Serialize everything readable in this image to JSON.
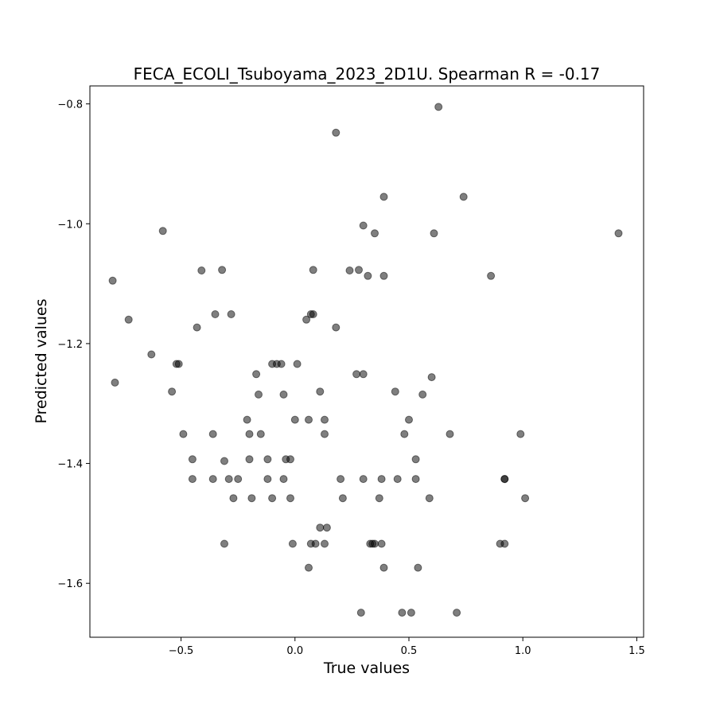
{
  "chart_data": {
    "type": "scatter",
    "title": "FECA_ECOLI_Tsuboyama_2023_2D1U. Spearman R = -0.17",
    "xlabel": "True values",
    "ylabel": "Predicted values",
    "xlim": [
      -0.9,
      1.53
    ],
    "ylim": [
      -1.69,
      -0.77
    ],
    "xticks": [
      -0.5,
      0.0,
      0.5,
      1.0,
      1.5
    ],
    "xtick_labels": [
      "−0.5",
      "0.0",
      "0.5",
      "1.0",
      "1.5"
    ],
    "yticks": [
      -1.6,
      -1.4,
      -1.2,
      -1.0,
      -0.8
    ],
    "ytick_labels": [
      "−1.6",
      "−1.4",
      "−1.2",
      "−1.0",
      "−0.8"
    ],
    "grid": false,
    "legend": "none",
    "marker_color": "#000000",
    "marker_alpha": 0.5,
    "points": [
      [
        -0.8,
        -1.095
      ],
      [
        -0.79,
        -1.265
      ],
      [
        -0.73,
        -1.16
      ],
      [
        -0.63,
        -1.218
      ],
      [
        -0.58,
        -1.012
      ],
      [
        -0.54,
        -1.28
      ],
      [
        -0.52,
        -1.234
      ],
      [
        -0.51,
        -1.234
      ],
      [
        -0.49,
        -1.351
      ],
      [
        -0.45,
        -1.393
      ],
      [
        -0.45,
        -1.426
      ],
      [
        -0.43,
        -1.173
      ],
      [
        -0.41,
        -1.078
      ],
      [
        -0.36,
        -1.351
      ],
      [
        -0.36,
        -1.426
      ],
      [
        -0.35,
        -1.151
      ],
      [
        -0.32,
        -1.077
      ],
      [
        -0.31,
        -1.396
      ],
      [
        -0.31,
        -1.534
      ],
      [
        -0.29,
        -1.426
      ],
      [
        -0.28,
        -1.151
      ],
      [
        -0.27,
        -1.458
      ],
      [
        -0.25,
        -1.426
      ],
      [
        -0.21,
        -1.327
      ],
      [
        -0.2,
        -1.351
      ],
      [
        -0.2,
        -1.393
      ],
      [
        -0.19,
        -1.458
      ],
      [
        -0.17,
        -1.251
      ],
      [
        -0.16,
        -1.285
      ],
      [
        -0.15,
        -1.351
      ],
      [
        -0.12,
        -1.393
      ],
      [
        -0.12,
        -1.426
      ],
      [
        -0.1,
        -1.234
      ],
      [
        -0.1,
        -1.458
      ],
      [
        -0.08,
        -1.234
      ],
      [
        -0.06,
        -1.234
      ],
      [
        -0.05,
        -1.285
      ],
      [
        -0.05,
        -1.426
      ],
      [
        -0.04,
        -1.393
      ],
      [
        -0.02,
        -1.458
      ],
      [
        -0.02,
        -1.393
      ],
      [
        -0.01,
        -1.534
      ],
      [
        0.0,
        -1.327
      ],
      [
        0.01,
        -1.234
      ],
      [
        0.05,
        -1.16
      ],
      [
        0.06,
        -1.574
      ],
      [
        0.06,
        -1.327
      ],
      [
        0.07,
        -1.151
      ],
      [
        0.07,
        -1.534
      ],
      [
        0.08,
        -1.151
      ],
      [
        0.08,
        -1.077
      ],
      [
        0.09,
        -1.534
      ],
      [
        0.11,
        -1.28
      ],
      [
        0.11,
        -1.507
      ],
      [
        0.13,
        -1.534
      ],
      [
        0.13,
        -1.351
      ],
      [
        0.13,
        -1.327
      ],
      [
        0.14,
        -1.507
      ],
      [
        0.18,
        -1.173
      ],
      [
        0.18,
        -0.848
      ],
      [
        0.2,
        -1.426
      ],
      [
        0.21,
        -1.458
      ],
      [
        0.24,
        -1.078
      ],
      [
        0.27,
        -1.251
      ],
      [
        0.28,
        -1.077
      ],
      [
        0.29,
        -1.649
      ],
      [
        0.3,
        -1.426
      ],
      [
        0.3,
        -1.003
      ],
      [
        0.3,
        -1.251
      ],
      [
        0.32,
        -1.087
      ],
      [
        0.33,
        -1.534
      ],
      [
        0.34,
        -1.534
      ],
      [
        0.35,
        -1.534
      ],
      [
        0.35,
        -1.016
      ],
      [
        0.37,
        -1.458
      ],
      [
        0.38,
        -1.426
      ],
      [
        0.38,
        -1.534
      ],
      [
        0.39,
        -0.955
      ],
      [
        0.39,
        -1.087
      ],
      [
        0.39,
        -1.574
      ],
      [
        0.44,
        -1.28
      ],
      [
        0.45,
        -1.426
      ],
      [
        0.47,
        -1.649
      ],
      [
        0.48,
        -1.351
      ],
      [
        0.5,
        -1.327
      ],
      [
        0.51,
        -1.649
      ],
      [
        0.53,
        -1.393
      ],
      [
        0.53,
        -1.426
      ],
      [
        0.54,
        -1.574
      ],
      [
        0.56,
        -1.285
      ],
      [
        0.59,
        -1.458
      ],
      [
        0.6,
        -1.256
      ],
      [
        0.61,
        -1.016
      ],
      [
        0.63,
        -0.805
      ],
      [
        0.68,
        -1.351
      ],
      [
        0.71,
        -1.649
      ],
      [
        0.74,
        -0.955
      ],
      [
        0.86,
        -1.087
      ],
      [
        0.9,
        -1.534
      ],
      [
        0.92,
        -1.534
      ],
      [
        0.92,
        -1.426
      ],
      [
        0.92,
        -1.426
      ],
      [
        0.99,
        -1.351
      ],
      [
        1.01,
        -1.458
      ],
      [
        1.42,
        -1.016
      ]
    ]
  }
}
